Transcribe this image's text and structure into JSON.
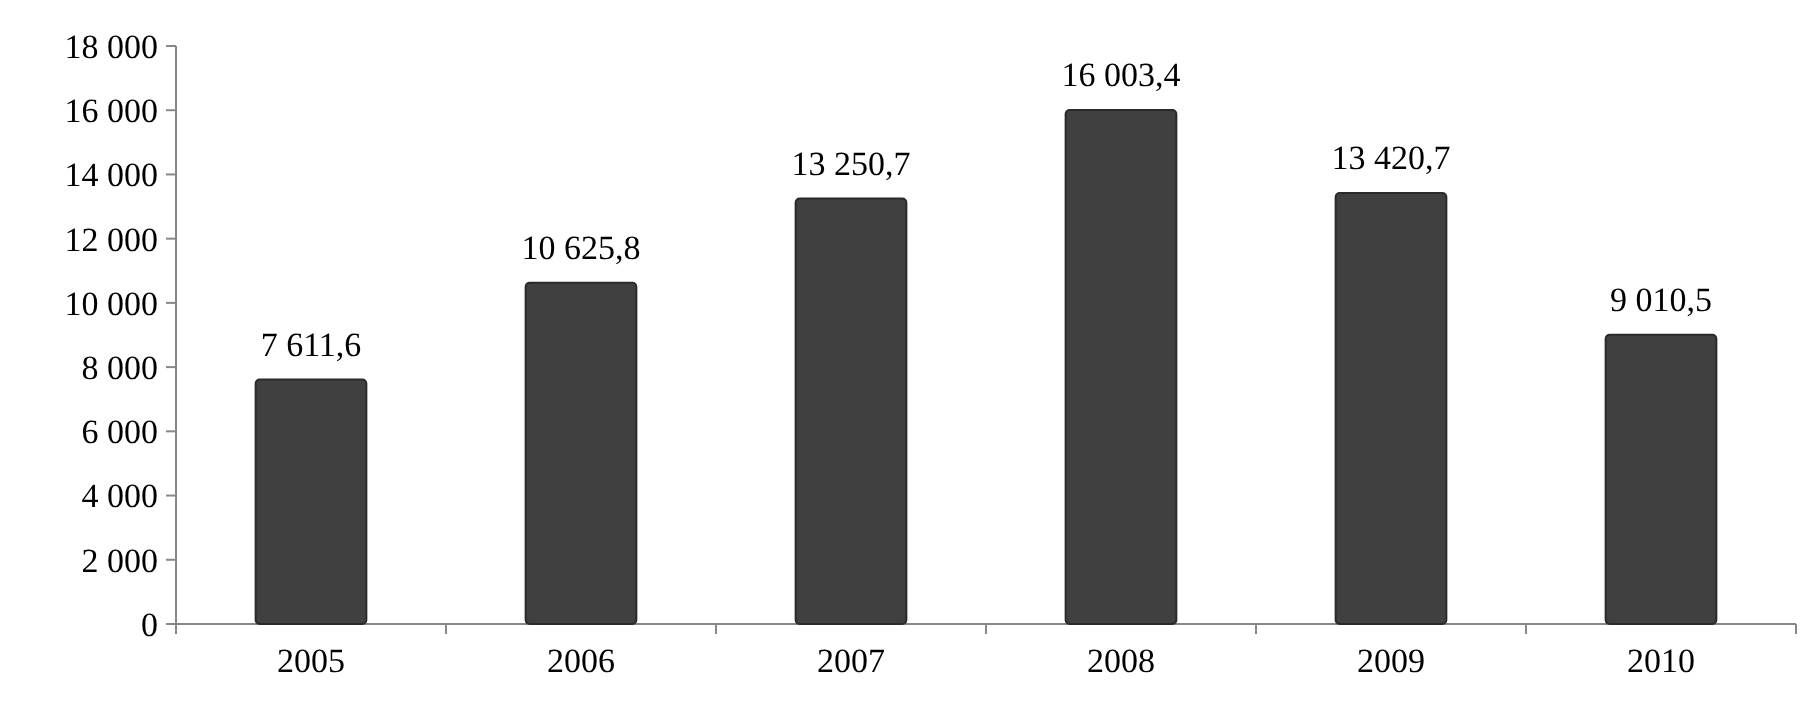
{
  "chart_data": {
    "type": "bar",
    "categories": [
      "2005",
      "2006",
      "2007",
      "2008",
      "2009",
      "2010"
    ],
    "values": [
      7611.6,
      10625.8,
      13250.7,
      16003.4,
      13420.7,
      9010.5
    ],
    "value_labels": [
      "7 611,6",
      "10 625,8",
      "13 250,7",
      "16 003,4",
      "13 420,7",
      "9 010,5"
    ],
    "color": "#404040",
    "ylim": [
      0,
      18000
    ],
    "yticks": [
      {
        "value": 0,
        "label": "0"
      },
      {
        "value": 2000,
        "label": "2 000"
      },
      {
        "value": 4000,
        "label": "4 000"
      },
      {
        "value": 6000,
        "label": "6 000"
      },
      {
        "value": 8000,
        "label": "8 000"
      },
      {
        "value": 10000,
        "label": "10 000"
      },
      {
        "value": 12000,
        "label": "12 000"
      },
      {
        "value": 14000,
        "label": "14 000"
      },
      {
        "value": 16000,
        "label": "16 000"
      },
      {
        "value": 18000,
        "label": "18 000"
      }
    ],
    "grid": false
  }
}
